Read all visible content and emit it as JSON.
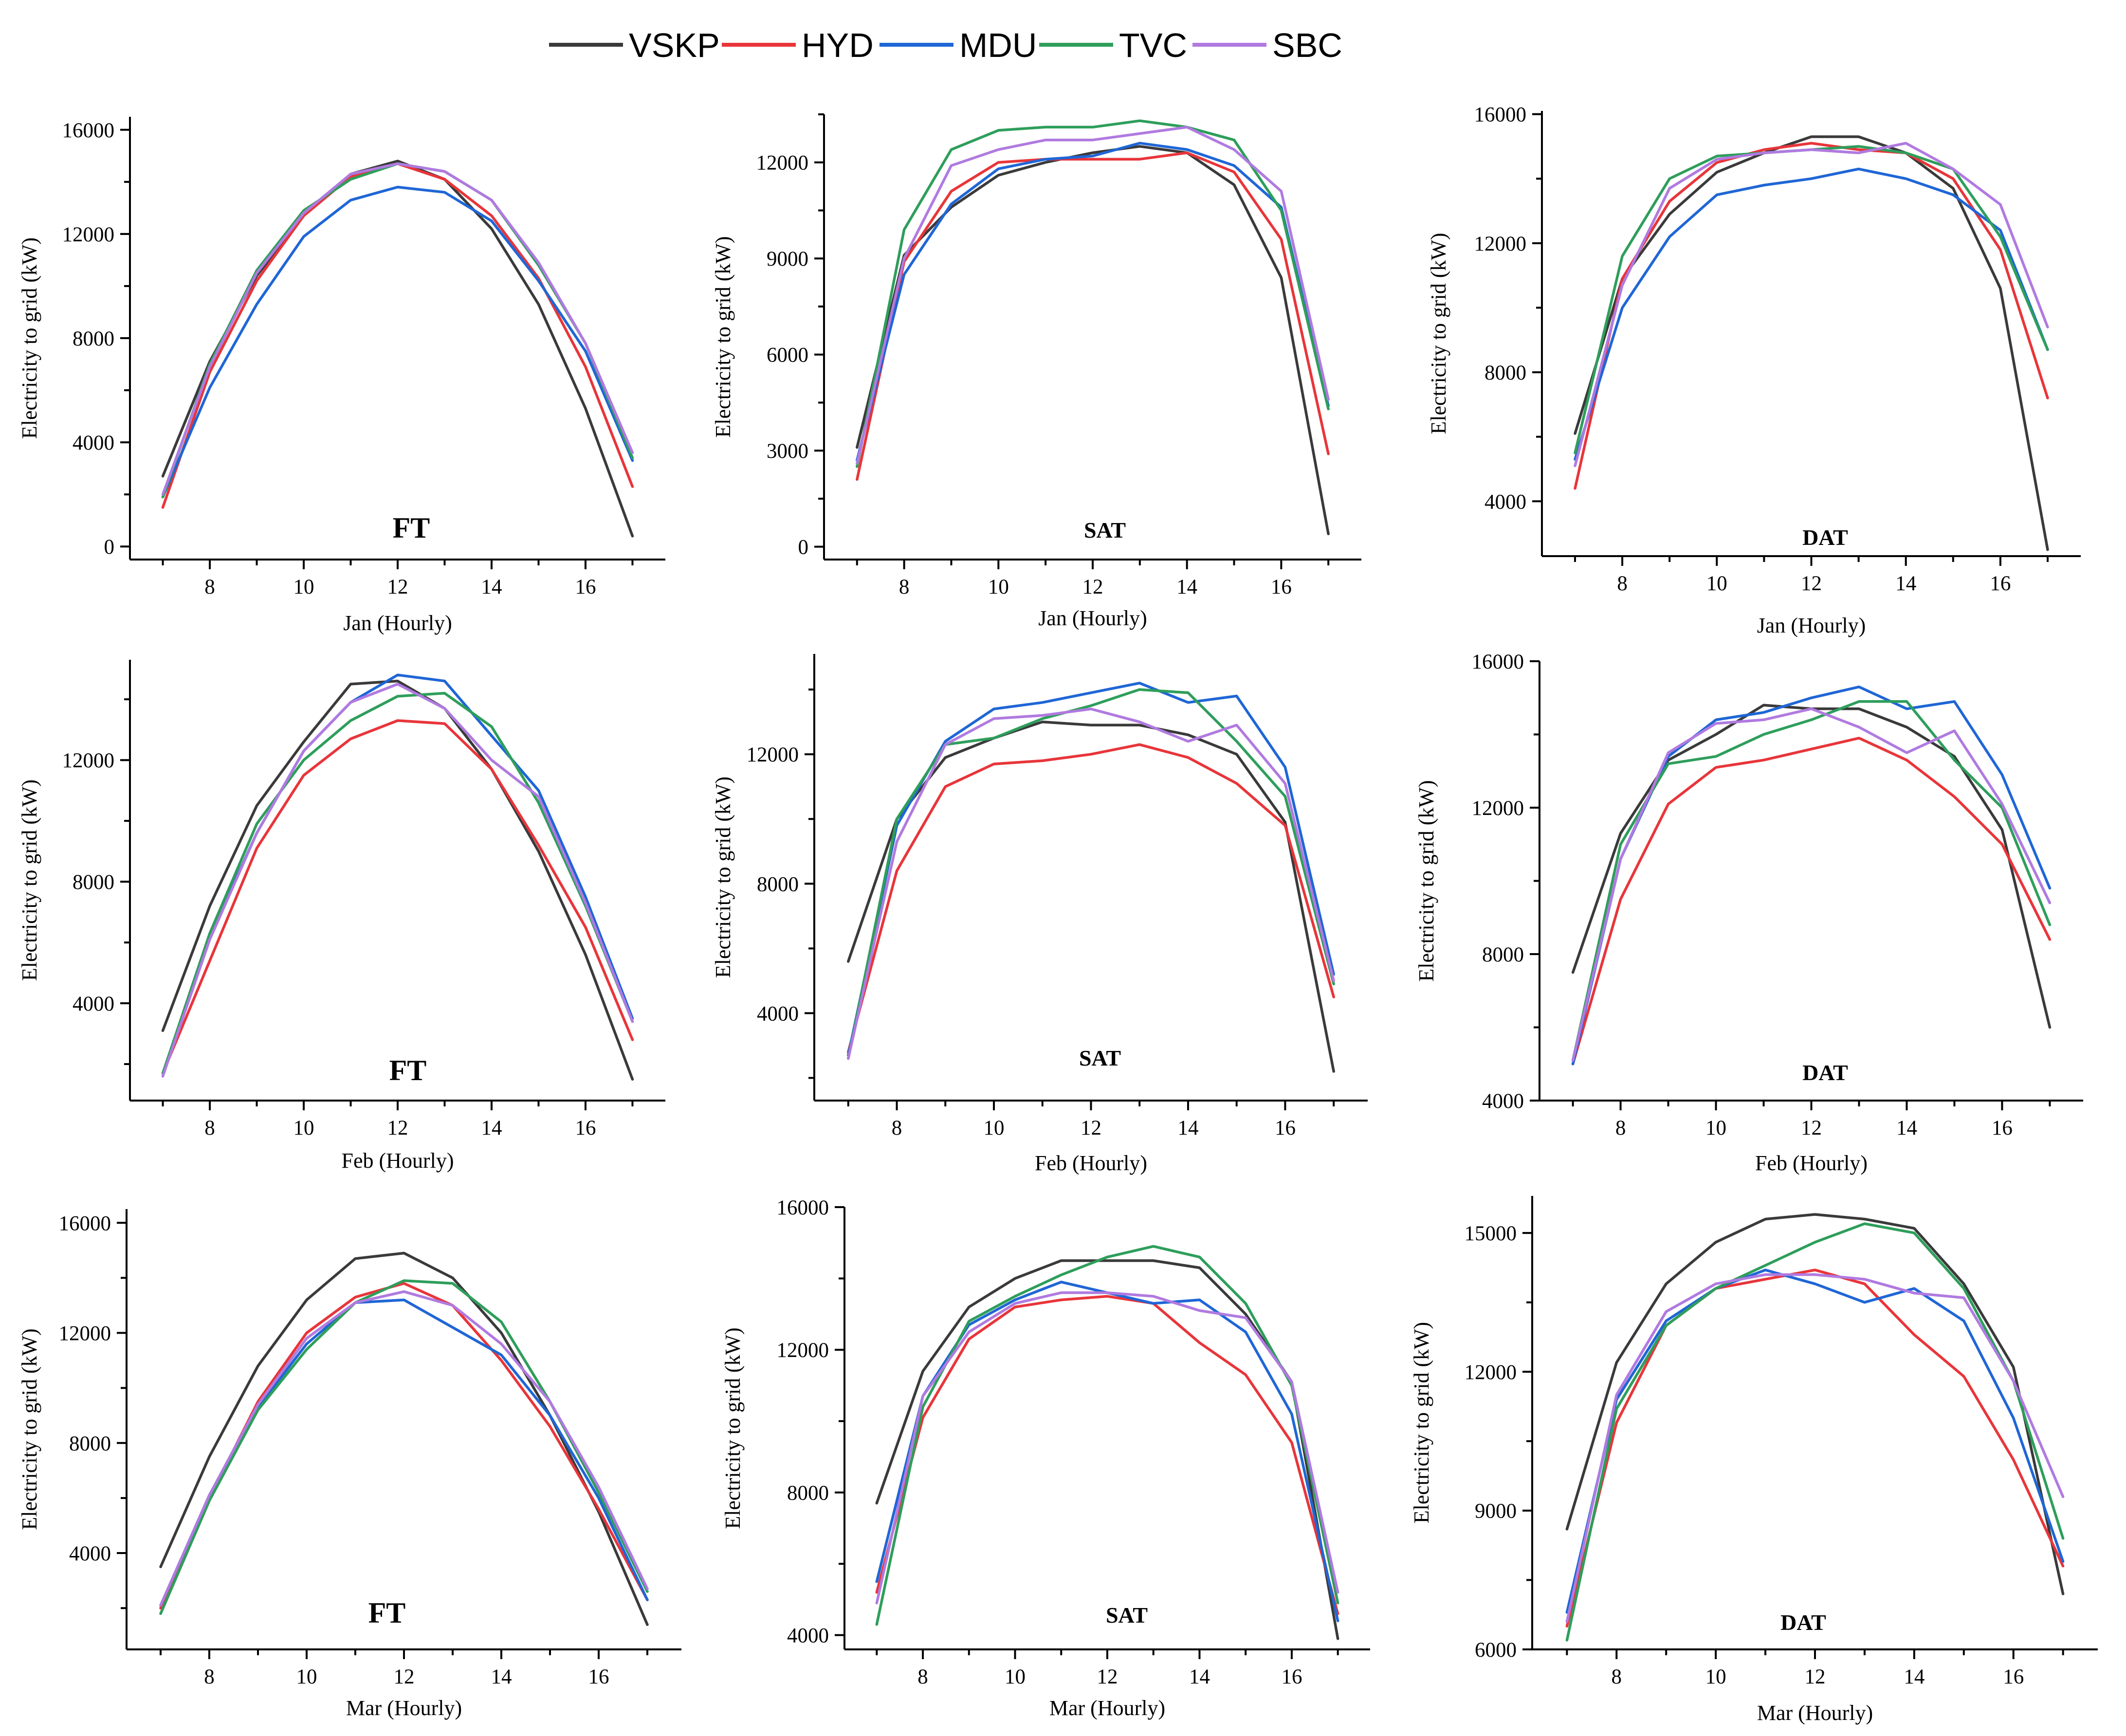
{
  "legend": [
    {
      "name": "VSKP",
      "color": "#3a3a3a"
    },
    {
      "name": "HYD",
      "color": "#e8353a"
    },
    {
      "name": "MDU",
      "color": "#1f66d6"
    },
    {
      "name": "TVC",
      "color": "#2e9e5b"
    },
    {
      "name": "SBC",
      "color": "#b07ae0"
    }
  ],
  "chart_data": [
    {
      "type": "line",
      "title": "FT",
      "xlabel": "Jan (Hourly)",
      "ylabel": "Electricity to grid (kW)",
      "x": [
        7,
        8,
        9,
        10,
        11,
        12,
        13,
        14,
        15,
        16,
        17
      ],
      "xticks": [
        8,
        10,
        12,
        14,
        16
      ],
      "xlim": [
        6.3,
        17.7
      ],
      "ylim": [
        -500,
        16500
      ],
      "yticks": [
        0,
        4000,
        8000,
        12000,
        16000
      ],
      "series": [
        {
          "name": "VSKP",
          "values": [
            2700,
            7100,
            10400,
            12700,
            14300,
            14800,
            14100,
            12200,
            9300,
            5300,
            400
          ]
        },
        {
          "name": "HYD",
          "values": [
            1500,
            6700,
            10200,
            12700,
            14200,
            14700,
            14100,
            12700,
            10300,
            6900,
            2300
          ]
        },
        {
          "name": "MDU",
          "values": [
            1900,
            6100,
            9300,
            11900,
            13300,
            13800,
            13600,
            12500,
            10200,
            7500,
            3300
          ]
        },
        {
          "name": "TVC",
          "values": [
            1900,
            7000,
            10600,
            12900,
            14100,
            14700,
            14400,
            13300,
            10800,
            7800,
            3400
          ]
        },
        {
          "name": "SBC",
          "values": [
            2000,
            6900,
            10500,
            12800,
            14300,
            14700,
            14400,
            13300,
            10900,
            7800,
            3600
          ]
        }
      ]
    },
    {
      "type": "line",
      "title": "SAT",
      "xlabel": "Jan (Hourly)",
      "ylabel": "Electricity to grid (kW)",
      "x": [
        7,
        8,
        9,
        10,
        11,
        12,
        13,
        14,
        15,
        16,
        17
      ],
      "xticks": [
        8,
        10,
        12,
        14,
        16
      ],
      "xlim": [
        6.3,
        17.7
      ],
      "ylim": [
        -400,
        13500
      ],
      "yticks": [
        0,
        3000,
        6000,
        9000,
        12000
      ],
      "series": [
        {
          "name": "VSKP",
          "values": [
            3100,
            9100,
            10600,
            11600,
            12000,
            12300,
            12500,
            12300,
            11300,
            8400,
            400
          ]
        },
        {
          "name": "HYD",
          "values": [
            2100,
            8900,
            11100,
            12000,
            12100,
            12100,
            12100,
            12300,
            11700,
            9600,
            2900
          ]
        },
        {
          "name": "MDU",
          "values": [
            2700,
            8500,
            10700,
            11800,
            12100,
            12200,
            12600,
            12400,
            11900,
            10600,
            4400
          ]
        },
        {
          "name": "TVC",
          "values": [
            2500,
            9900,
            12400,
            13000,
            13100,
            13100,
            13300,
            13100,
            12700,
            10500,
            4300
          ]
        },
        {
          "name": "SBC",
          "values": [
            2600,
            9000,
            11900,
            12400,
            12700,
            12700,
            12900,
            13100,
            12400,
            11100,
            4600
          ]
        }
      ]
    },
    {
      "type": "line",
      "title": "DAT",
      "xlabel": "Jan (Hourly)",
      "ylabel": "Electricity to grid (kW)",
      "x": [
        7,
        8,
        9,
        10,
        11,
        12,
        13,
        14,
        15,
        16,
        17
      ],
      "xticks": [
        8,
        10,
        12,
        14,
        16
      ],
      "xlim": [
        6.3,
        17.7
      ],
      "ylim": [
        2300,
        16100
      ],
      "yticks": [
        4000,
        8000,
        12000,
        16000
      ],
      "series": [
        {
          "name": "VSKP",
          "values": [
            6100,
            10900,
            12900,
            14200,
            14800,
            15300,
            15300,
            14800,
            13700,
            10600,
            2500
          ]
        },
        {
          "name": "HYD",
          "values": [
            4400,
            10900,
            13300,
            14500,
            14900,
            15100,
            14900,
            14800,
            14000,
            11800,
            7200
          ]
        },
        {
          "name": "MDU",
          "values": [
            5300,
            10000,
            12200,
            13500,
            13800,
            14000,
            14300,
            14000,
            13500,
            12400,
            8700
          ]
        },
        {
          "name": "TVC",
          "values": [
            5500,
            11600,
            14000,
            14700,
            14800,
            14900,
            15000,
            14800,
            14300,
            12200,
            8700
          ]
        },
        {
          "name": "SBC",
          "values": [
            5100,
            10700,
            13700,
            14600,
            14800,
            14900,
            14800,
            15100,
            14300,
            13200,
            9400
          ]
        }
      ]
    },
    {
      "type": "line",
      "title": "FT",
      "xlabel": "Feb (Hourly)",
      "ylabel": "Electricity to grid (kW)",
      "x": [
        7,
        8,
        9,
        10,
        11,
        12,
        13,
        14,
        15,
        16,
        17
      ],
      "xticks": [
        8,
        10,
        12,
        14,
        16
      ],
      "xlim": [
        6.3,
        17.7
      ],
      "ylim": [
        800,
        15300
      ],
      "yticks": [
        4000,
        8000,
        12000
      ],
      "series": [
        {
          "name": "VSKP",
          "values": [
            3100,
            7200,
            10500,
            12600,
            14500,
            14600,
            13700,
            11700,
            9000,
            5600,
            1500
          ]
        },
        {
          "name": "HYD",
          "values": [
            1700,
            5400,
            9100,
            11500,
            12700,
            13300,
            13200,
            11700,
            9200,
            6500,
            2800
          ]
        },
        {
          "name": "MDU",
          "values": [
            1700,
            6200,
            9600,
            12300,
            13900,
            14800,
            14600,
            12800,
            11000,
            7500,
            3500
          ]
        },
        {
          "name": "TVC",
          "values": [
            1700,
            6300,
            9900,
            12000,
            13300,
            14100,
            14200,
            13100,
            10600,
            7200,
            3400
          ]
        },
        {
          "name": "SBC",
          "values": [
            1600,
            6100,
            9600,
            12300,
            13900,
            14500,
            13700,
            12000,
            10800,
            7300,
            3400
          ]
        }
      ]
    },
    {
      "type": "line",
      "title": "SAT",
      "xlabel": "Feb (Hourly)",
      "ylabel": "Electricity to grid (kW)",
      "x": [
        7,
        8,
        9,
        10,
        11,
        12,
        13,
        14,
        15,
        16,
        17
      ],
      "xticks": [
        8,
        10,
        12,
        14,
        16
      ],
      "xlim": [
        6.3,
        17.7
      ],
      "ylim": [
        1300,
        15100
      ],
      "yticks": [
        4000,
        8000,
        12000
      ],
      "series": [
        {
          "name": "VSKP",
          "values": [
            5600,
            10000,
            11900,
            12500,
            13000,
            12900,
            12900,
            12600,
            12000,
            9900,
            2200
          ]
        },
        {
          "name": "HYD",
          "values": [
            2800,
            8400,
            11000,
            11700,
            11800,
            12000,
            12300,
            11900,
            11100,
            9800,
            4500
          ]
        },
        {
          "name": "MDU",
          "values": [
            2700,
            9800,
            12400,
            13400,
            13600,
            13900,
            14200,
            13600,
            13800,
            11600,
            5200
          ]
        },
        {
          "name": "TVC",
          "values": [
            2600,
            10000,
            12300,
            12500,
            13100,
            13500,
            14000,
            13900,
            12400,
            10700,
            4900
          ]
        },
        {
          "name": "SBC",
          "values": [
            2600,
            9300,
            12300,
            13100,
            13200,
            13400,
            13000,
            12400,
            12900,
            11100,
            5000
          ]
        }
      ]
    },
    {
      "type": "line",
      "title": "DAT",
      "xlabel": "Feb (Hourly)",
      "ylabel": "Electricity to grid (kW)",
      "x": [
        7,
        8,
        9,
        10,
        11,
        12,
        13,
        14,
        15,
        16,
        17
      ],
      "xticks": [
        8,
        10,
        12,
        14,
        16
      ],
      "xlim": [
        6.3,
        17.7
      ],
      "ylim": [
        4000,
        16000
      ],
      "yticks": [
        4000,
        8000,
        12000,
        16000
      ],
      "series": [
        {
          "name": "VSKP",
          "values": [
            7500,
            11300,
            13300,
            14000,
            14800,
            14700,
            14700,
            14200,
            13400,
            11400,
            6000
          ]
        },
        {
          "name": "HYD",
          "values": [
            5000,
            9500,
            12100,
            13100,
            13300,
            13600,
            13900,
            13300,
            12300,
            11000,
            8400
          ]
        },
        {
          "name": "MDU",
          "values": [
            5000,
            10600,
            13400,
            14400,
            14600,
            15000,
            15300,
            14700,
            14900,
            12900,
            9800
          ]
        },
        {
          "name": "TVC",
          "values": [
            5100,
            11000,
            13200,
            13400,
            14000,
            14400,
            14900,
            14900,
            13300,
            12000,
            8800
          ]
        },
        {
          "name": "SBC",
          "values": [
            5100,
            10600,
            13500,
            14300,
            14400,
            14700,
            14200,
            13500,
            14100,
            12100,
            9400
          ]
        }
      ]
    },
    {
      "type": "line",
      "title": "FT",
      "xlabel": "Mar (Hourly)",
      "ylabel": "Electricity to grid (kW)",
      "x": [
        7,
        8,
        9,
        10,
        11,
        12,
        13,
        14,
        15,
        16,
        17
      ],
      "xticks": [
        8,
        10,
        12,
        14,
        16
      ],
      "xlim": [
        6.3,
        17.7
      ],
      "ylim": [
        500,
        16500
      ],
      "yticks": [
        4000,
        8000,
        12000,
        16000
      ],
      "series": [
        {
          "name": "VSKP",
          "values": [
            3500,
            7500,
            10800,
            13200,
            14700,
            14900,
            14000,
            12000,
            9000,
            5500,
            1400
          ]
        },
        {
          "name": "HYD",
          "values": [
            2000,
            6000,
            9500,
            12000,
            13300,
            13800,
            13000,
            11000,
            8600,
            5600,
            2300
          ]
        },
        {
          "name": "MDU",
          "values": [
            2100,
            6100,
            9300,
            11600,
            13100,
            13200,
            12200,
            11200,
            9000,
            6000,
            2300
          ]
        },
        {
          "name": "TVC",
          "values": [
            1800,
            5900,
            9200,
            11400,
            13100,
            13900,
            13800,
            12400,
            9500,
            6200,
            2600
          ]
        },
        {
          "name": "SBC",
          "values": [
            2100,
            6100,
            9400,
            11800,
            13100,
            13500,
            13000,
            11600,
            9500,
            6400,
            2700
          ]
        }
      ]
    },
    {
      "type": "line",
      "title": "SAT",
      "xlabel": "Mar (Hourly)",
      "ylabel": "Electricity to grid (kW)",
      "x": [
        7,
        8,
        9,
        10,
        11,
        12,
        13,
        14,
        15,
        16,
        17
      ],
      "xticks": [
        8,
        10,
        12,
        14,
        16
      ],
      "xlim": [
        6.3,
        17.7
      ],
      "ylim": [
        3600,
        16000
      ],
      "yticks": [
        4000,
        8000,
        12000,
        16000
      ],
      "series": [
        {
          "name": "VSKP",
          "values": [
            7700,
            11400,
            13200,
            14000,
            14500,
            14500,
            14500,
            14300,
            13000,
            11100,
            3900
          ]
        },
        {
          "name": "HYD",
          "values": [
            5200,
            10100,
            12300,
            13200,
            13400,
            13500,
            13300,
            12200,
            11300,
            9400,
            4600
          ]
        },
        {
          "name": "MDU",
          "values": [
            5500,
            10700,
            12700,
            13400,
            13900,
            13600,
            13300,
            13400,
            12500,
            10200,
            4400
          ]
        },
        {
          "name": "TVC",
          "values": [
            4300,
            10400,
            12800,
            13500,
            14100,
            14600,
            14900,
            14600,
            13300,
            11000,
            4900
          ]
        },
        {
          "name": "SBC",
          "values": [
            4900,
            10700,
            12500,
            13300,
            13600,
            13600,
            13500,
            13100,
            12900,
            11100,
            5200
          ]
        }
      ]
    },
    {
      "type": "line",
      "title": "DAT",
      "xlabel": "Mar (Hourly)",
      "ylabel": "Electricity to grid (kW)",
      "x": [
        7,
        8,
        9,
        10,
        11,
        12,
        13,
        14,
        15,
        16,
        17
      ],
      "xticks": [
        8,
        10,
        12,
        14,
        16
      ],
      "xlim": [
        6.3,
        17.7
      ],
      "ylim": [
        6000,
        15800
      ],
      "yticks": [
        6000,
        9000,
        12000,
        15000
      ],
      "series": [
        {
          "name": "VSKP",
          "values": [
            8600,
            12200,
            13900,
            14800,
            15300,
            15400,
            15300,
            15100,
            13900,
            12100,
            7200
          ]
        },
        {
          "name": "HYD",
          "values": [
            6500,
            10900,
            13000,
            13800,
            14000,
            14200,
            13900,
            12800,
            11900,
            10100,
            7800
          ]
        },
        {
          "name": "MDU",
          "values": [
            6800,
            11400,
            13100,
            13800,
            14200,
            13900,
            13500,
            13800,
            13100,
            11000,
            7900
          ]
        },
        {
          "name": "TVC",
          "values": [
            6200,
            11200,
            13000,
            13800,
            14300,
            14800,
            15200,
            15000,
            13800,
            11800,
            8400
          ]
        },
        {
          "name": "SBC",
          "values": [
            6600,
            11500,
            13300,
            13900,
            14100,
            14100,
            14000,
            13700,
            13600,
            11800,
            9300
          ]
        }
      ]
    }
  ]
}
